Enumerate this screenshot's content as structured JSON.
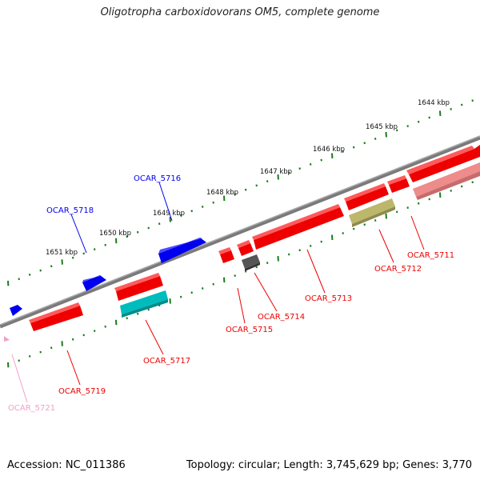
{
  "title": "Oligotropha carboxidovorans OM5, complete genome",
  "footer": {
    "accession": "Accession: NC_011386",
    "summary": "Topology: circular; Length: 3,745,629 bp; Genes: 3,770"
  },
  "colors": {
    "forward_gene": "#0000ee",
    "reverse_gene": "#ee0000",
    "backbone": "#808080",
    "tick": "#1a7a1a"
  },
  "kbp_labels": [
    "1644 kbp",
    "1645 kbp",
    "1646 kbp",
    "1647 kbp",
    "1648 kbp",
    "1649 kbp",
    "1650 kbp",
    "1651 kbp"
  ],
  "genes": [
    {
      "label": "OCAR_5711",
      "color": "#ee0000"
    },
    {
      "label": "OCAR_5712",
      "color": "#ee0000"
    },
    {
      "label": "OCAR_5713",
      "color": "#ee0000"
    },
    {
      "label": "OCAR_5714",
      "color": "#ee0000"
    },
    {
      "label": "OCAR_5715",
      "color": "#ee0000"
    },
    {
      "label": "OCAR_5716",
      "color": "#0000ee"
    },
    {
      "label": "OCAR_5717",
      "color": "#ee0000"
    },
    {
      "label": "OCAR_5718",
      "color": "#0000ee"
    },
    {
      "label": "OCAR_5719",
      "color": "#ee0000"
    },
    {
      "label": "OCAR_5721",
      "color": "#f2a0c8"
    }
  ]
}
